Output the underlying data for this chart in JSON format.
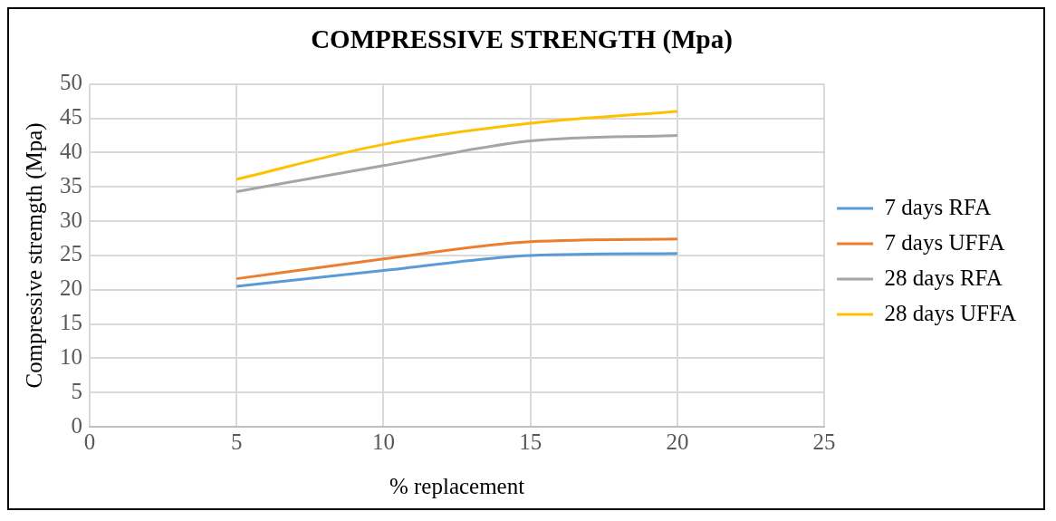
{
  "chart_data": {
    "type": "line",
    "title": "COMPRESSIVE STRENGTH (Mpa)",
    "xlabel": "% replacement",
    "ylabel": "Compressive stremgth (Mpa)",
    "x": [
      5,
      10,
      15,
      20
    ],
    "series": [
      {
        "name": "7 days RFA",
        "color": "#5b9bd5",
        "values": [
          20.5,
          22.8,
          25.0,
          25.3
        ]
      },
      {
        "name": "7 days UFFA",
        "color": "#ed7d31",
        "values": [
          21.6,
          24.5,
          27.0,
          27.4
        ]
      },
      {
        "name": "28 days RFA",
        "color": "#a5a5a5",
        "values": [
          34.3,
          38.1,
          41.7,
          42.5
        ]
      },
      {
        "name": "28 days UFFA",
        "color": "#ffc000",
        "values": [
          36.1,
          41.2,
          44.3,
          46.0
        ]
      }
    ],
    "xlim": [
      0,
      25
    ],
    "xticks": [
      0,
      5,
      10,
      15,
      20,
      25
    ],
    "ylim": [
      0,
      50
    ],
    "yticks": [
      0,
      5,
      10,
      15,
      20,
      25,
      30,
      35,
      40,
      45,
      50
    ],
    "grid": true,
    "legend": "right",
    "marker": "none",
    "line_style": "solid"
  }
}
